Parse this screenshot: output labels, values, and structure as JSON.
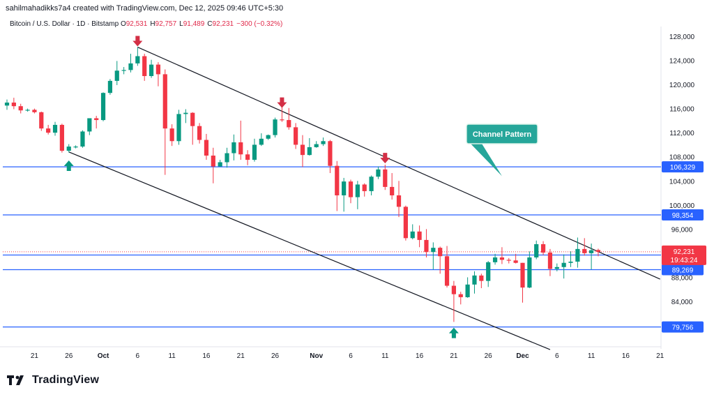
{
  "header": {
    "credit": "sahilmahadikks7a4 created with TradingView.com, Dec 12, 2025 09:46 UTC+5:30"
  },
  "symbol": {
    "name": "Bitcoin / U.S. Dollar · 1D · Bitstamp",
    "ohlc": [
      {
        "k": "O",
        "v": "92,531"
      },
      {
        "k": "H",
        "v": "92,757"
      },
      {
        "k": "L",
        "v": "91,489"
      },
      {
        "k": "C",
        "v": "92,231"
      },
      {
        "k": "",
        "v": "−300 (−0.32%)"
      }
    ]
  },
  "brand": {
    "name": "TradingView"
  },
  "colors": {
    "up": "#089981",
    "down": "#f23645",
    "level": "#2962ff",
    "callout": "#26a69a",
    "arrow_down": "#d32f45"
  },
  "chart_data": {
    "type": "candlestick",
    "y_ticks": [
      "84,000",
      "88,000",
      "92,000",
      "96,000",
      "100,000",
      "104,000",
      "108,000",
      "112,000",
      "116,000",
      "120,000",
      "124,000",
      "128,000"
    ],
    "ylim": [
      76000,
      130000
    ],
    "x_ticks": [
      {
        "label": "21",
        "date": "2025-09-21"
      },
      {
        "label": "26",
        "date": "2025-09-26"
      },
      {
        "label": "Oct",
        "date": "2025-10-01"
      },
      {
        "label": "6",
        "date": "2025-10-06"
      },
      {
        "label": "11",
        "date": "2025-10-11"
      },
      {
        "label": "16",
        "date": "2025-10-16"
      },
      {
        "label": "21",
        "date": "2025-10-21"
      },
      {
        "label": "26",
        "date": "2025-10-26"
      },
      {
        "label": "Nov",
        "date": "2025-11-01"
      },
      {
        "label": "6",
        "date": "2025-11-06"
      },
      {
        "label": "11",
        "date": "2025-11-11"
      },
      {
        "label": "16",
        "date": "2025-11-16"
      },
      {
        "label": "21",
        "date": "2025-11-21"
      },
      {
        "label": "26",
        "date": "2025-11-26"
      },
      {
        "label": "Dec",
        "date": "2025-12-01"
      },
      {
        "label": "6",
        "date": "2025-12-06"
      },
      {
        "label": "11",
        "date": "2025-12-11"
      },
      {
        "label": "16",
        "date": "2025-12-16"
      },
      {
        "label": "21",
        "date": "2025-12-21"
      }
    ],
    "horizontal_levels": [
      {
        "value": 106329,
        "label": "106,329"
      },
      {
        "value": 98354,
        "label": "98,354"
      },
      {
        "value": 91702,
        "label": "91,702"
      },
      {
        "value": 89269,
        "label": "89,269"
      },
      {
        "value": 79756,
        "label": "79,756"
      }
    ],
    "last_price": {
      "value": 92231,
      "label": "92,231",
      "countdown": "19:43:24"
    },
    "channel_lines": [
      {
        "from": {
          "date": "2025-10-06",
          "price": 126200
        },
        "to": {
          "date": "2025-12-21",
          "price": 87700
        }
      },
      {
        "from": {
          "date": "2025-09-26",
          "price": 108800
        },
        "to": {
          "date": "2025-12-05",
          "price": 76000
        }
      }
    ],
    "annotation": {
      "text": "Channel Pattern",
      "points_to": {
        "date": "2025-11-28",
        "price": 104800
      }
    },
    "markers": [
      {
        "type": "down",
        "date": "2025-10-06",
        "price": 126200
      },
      {
        "type": "down",
        "date": "2025-10-27",
        "price": 116000
      },
      {
        "type": "down",
        "date": "2025-11-11",
        "price": 106800
      },
      {
        "type": "up",
        "date": "2025-09-26",
        "price": 107500
      },
      {
        "type": "up",
        "date": "2025-11-21",
        "price": 79756
      }
    ],
    "candles": [
      {
        "date": "2025-09-17",
        "o": 116500,
        "h": 117500,
        "l": 115800,
        "c": 117000
      },
      {
        "date": "2025-09-18",
        "o": 117000,
        "h": 117800,
        "l": 115900,
        "c": 116400
      },
      {
        "date": "2025-09-19",
        "o": 116400,
        "h": 116800,
        "l": 115200,
        "c": 115700
      },
      {
        "date": "2025-09-20",
        "o": 115700,
        "h": 116000,
        "l": 115500,
        "c": 115800
      },
      {
        "date": "2025-09-21",
        "o": 115800,
        "h": 116000,
        "l": 115200,
        "c": 115400
      },
      {
        "date": "2025-09-22",
        "o": 115400,
        "h": 115500,
        "l": 112300,
        "c": 112700
      },
      {
        "date": "2025-09-23",
        "o": 112700,
        "h": 113300,
        "l": 111700,
        "c": 112000
      },
      {
        "date": "2025-09-24",
        "o": 112000,
        "h": 113800,
        "l": 111500,
        "c": 113300
      },
      {
        "date": "2025-09-25",
        "o": 113300,
        "h": 113500,
        "l": 108700,
        "c": 109000
      },
      {
        "date": "2025-09-26",
        "o": 109000,
        "h": 110100,
        "l": 108700,
        "c": 109700
      },
      {
        "date": "2025-09-27",
        "o": 109700,
        "h": 109900,
        "l": 109400,
        "c": 109700
      },
      {
        "date": "2025-09-28",
        "o": 109700,
        "h": 112400,
        "l": 109500,
        "c": 112200
      },
      {
        "date": "2025-09-29",
        "o": 112200,
        "h": 114300,
        "l": 111600,
        "c": 114400
      },
      {
        "date": "2025-09-30",
        "o": 114400,
        "h": 114800,
        "l": 112700,
        "c": 114100
      },
      {
        "date": "2025-10-01",
        "o": 114100,
        "h": 118700,
        "l": 113900,
        "c": 118600
      },
      {
        "date": "2025-10-02",
        "o": 118600,
        "h": 120900,
        "l": 118300,
        "c": 120600
      },
      {
        "date": "2025-10-03",
        "o": 120600,
        "h": 123900,
        "l": 119900,
        "c": 122300
      },
      {
        "date": "2025-10-04",
        "o": 122300,
        "h": 122900,
        "l": 121700,
        "c": 122400
      },
      {
        "date": "2025-10-05",
        "o": 122400,
        "h": 125100,
        "l": 122000,
        "c": 123500
      },
      {
        "date": "2025-10-06",
        "o": 123500,
        "h": 126200,
        "l": 123100,
        "c": 124700
      },
      {
        "date": "2025-10-07",
        "o": 124700,
        "h": 125100,
        "l": 120600,
        "c": 121400
      },
      {
        "date": "2025-10-08",
        "o": 121400,
        "h": 124100,
        "l": 121100,
        "c": 123300
      },
      {
        "date": "2025-10-09",
        "o": 123300,
        "h": 123700,
        "l": 119700,
        "c": 121700
      },
      {
        "date": "2025-10-10",
        "o": 121700,
        "h": 122500,
        "l": 105000,
        "c": 112700
      },
      {
        "date": "2025-10-11",
        "o": 112700,
        "h": 113400,
        "l": 109800,
        "c": 110600
      },
      {
        "date": "2025-10-12",
        "o": 110600,
        "h": 115800,
        "l": 110000,
        "c": 115100
      },
      {
        "date": "2025-10-13",
        "o": 115100,
        "h": 115900,
        "l": 113600,
        "c": 115300
      },
      {
        "date": "2025-10-14",
        "o": 115300,
        "h": 115400,
        "l": 110000,
        "c": 113100
      },
      {
        "date": "2025-10-15",
        "o": 113100,
        "h": 113600,
        "l": 110200,
        "c": 110800
      },
      {
        "date": "2025-10-16",
        "o": 110800,
        "h": 111800,
        "l": 107500,
        "c": 108200
      },
      {
        "date": "2025-10-17",
        "o": 108200,
        "h": 109500,
        "l": 103600,
        "c": 106400
      },
      {
        "date": "2025-10-18",
        "o": 106400,
        "h": 107500,
        "l": 106300,
        "c": 107100
      },
      {
        "date": "2025-10-19",
        "o": 107100,
        "h": 109500,
        "l": 106200,
        "c": 108600
      },
      {
        "date": "2025-10-20",
        "o": 108600,
        "h": 111700,
        "l": 107400,
        "c": 110400
      },
      {
        "date": "2025-10-21",
        "o": 110400,
        "h": 114000,
        "l": 107500,
        "c": 108400
      },
      {
        "date": "2025-10-22",
        "o": 108400,
        "h": 109100,
        "l": 106600,
        "c": 107500
      },
      {
        "date": "2025-10-23",
        "o": 107500,
        "h": 111000,
        "l": 107200,
        "c": 110000
      },
      {
        "date": "2025-10-24",
        "o": 110000,
        "h": 111900,
        "l": 109800,
        "c": 111000
      },
      {
        "date": "2025-10-25",
        "o": 111000,
        "h": 111700,
        "l": 110800,
        "c": 111600
      },
      {
        "date": "2025-10-26",
        "o": 111600,
        "h": 114500,
        "l": 111200,
        "c": 114200
      },
      {
        "date": "2025-10-27",
        "o": 114200,
        "h": 116300,
        "l": 113800,
        "c": 114100
      },
      {
        "date": "2025-10-28",
        "o": 114100,
        "h": 116100,
        "l": 112500,
        "c": 112900
      },
      {
        "date": "2025-10-29",
        "o": 112900,
        "h": 113600,
        "l": 109300,
        "c": 110000
      },
      {
        "date": "2025-10-30",
        "o": 110000,
        "h": 111600,
        "l": 106300,
        "c": 108300
      },
      {
        "date": "2025-10-31",
        "o": 108300,
        "h": 111100,
        "l": 108200,
        "c": 109600
      },
      {
        "date": "2025-11-01",
        "o": 109600,
        "h": 110600,
        "l": 109500,
        "c": 110100
      },
      {
        "date": "2025-11-02",
        "o": 110100,
        "h": 111200,
        "l": 109800,
        "c": 110600
      },
      {
        "date": "2025-11-03",
        "o": 110600,
        "h": 110800,
        "l": 105300,
        "c": 106500
      },
      {
        "date": "2025-11-04",
        "o": 106500,
        "h": 107300,
        "l": 99000,
        "c": 101600
      },
      {
        "date": "2025-11-05",
        "o": 101600,
        "h": 104500,
        "l": 98900,
        "c": 103900
      },
      {
        "date": "2025-11-06",
        "o": 103900,
        "h": 104200,
        "l": 100300,
        "c": 101300
      },
      {
        "date": "2025-11-07",
        "o": 101300,
        "h": 104000,
        "l": 99300,
        "c": 103400
      },
      {
        "date": "2025-11-08",
        "o": 103400,
        "h": 103600,
        "l": 101400,
        "c": 102300
      },
      {
        "date": "2025-11-09",
        "o": 102300,
        "h": 104900,
        "l": 101600,
        "c": 104700
      },
      {
        "date": "2025-11-10",
        "o": 104700,
        "h": 106400,
        "l": 104300,
        "c": 105900
      },
      {
        "date": "2025-11-11",
        "o": 105900,
        "h": 106700,
        "l": 102500,
        "c": 103000
      },
      {
        "date": "2025-11-12",
        "o": 103000,
        "h": 105300,
        "l": 100900,
        "c": 101600
      },
      {
        "date": "2025-11-13",
        "o": 101600,
        "h": 104000,
        "l": 98000,
        "c": 99700
      },
      {
        "date": "2025-11-14",
        "o": 99700,
        "h": 99900,
        "l": 94100,
        "c": 94500
      },
      {
        "date": "2025-11-15",
        "o": 94500,
        "h": 96800,
        "l": 94300,
        "c": 95600
      },
      {
        "date": "2025-11-16",
        "o": 95600,
        "h": 96600,
        "l": 93000,
        "c": 94200
      },
      {
        "date": "2025-11-17",
        "o": 94200,
        "h": 96000,
        "l": 91300,
        "c": 92200
      },
      {
        "date": "2025-11-18",
        "o": 92200,
        "h": 93800,
        "l": 89300,
        "c": 92900
      },
      {
        "date": "2025-11-19",
        "o": 92900,
        "h": 93100,
        "l": 88600,
        "c": 91500
      },
      {
        "date": "2025-11-20",
        "o": 91500,
        "h": 93200,
        "l": 86300,
        "c": 86600
      },
      {
        "date": "2025-11-21",
        "o": 86600,
        "h": 87400,
        "l": 80600,
        "c": 85200
      },
      {
        "date": "2025-11-22",
        "o": 85200,
        "h": 85600,
        "l": 83500,
        "c": 84700
      },
      {
        "date": "2025-11-23",
        "o": 84700,
        "h": 88000,
        "l": 84600,
        "c": 86800
      },
      {
        "date": "2025-11-24",
        "o": 86800,
        "h": 89000,
        "l": 85300,
        "c": 88300
      },
      {
        "date": "2025-11-25",
        "o": 88300,
        "h": 88600,
        "l": 86200,
        "c": 87400
      },
      {
        "date": "2025-11-26",
        "o": 87400,
        "h": 90700,
        "l": 86400,
        "c": 90500
      },
      {
        "date": "2025-11-27",
        "o": 90500,
        "h": 91900,
        "l": 90100,
        "c": 91300
      },
      {
        "date": "2025-11-28",
        "o": 91300,
        "h": 93000,
        "l": 90200,
        "c": 90900
      },
      {
        "date": "2025-11-29",
        "o": 90900,
        "h": 91200,
        "l": 90300,
        "c": 90800
      },
      {
        "date": "2025-11-30",
        "o": 90800,
        "h": 91900,
        "l": 90300,
        "c": 90400
      },
      {
        "date": "2025-12-01",
        "o": 90400,
        "h": 90400,
        "l": 83800,
        "c": 86300
      },
      {
        "date": "2025-12-02",
        "o": 86300,
        "h": 92300,
        "l": 86200,
        "c": 91300
      },
      {
        "date": "2025-12-03",
        "o": 91300,
        "h": 94100,
        "l": 91000,
        "c": 93500
      },
      {
        "date": "2025-12-04",
        "o": 93500,
        "h": 94000,
        "l": 91700,
        "c": 92100
      },
      {
        "date": "2025-12-05",
        "o": 92100,
        "h": 92700,
        "l": 88200,
        "c": 89400
      },
      {
        "date": "2025-12-06",
        "o": 89400,
        "h": 90300,
        "l": 89000,
        "c": 89700
      },
      {
        "date": "2025-12-07",
        "o": 89700,
        "h": 91800,
        "l": 87800,
        "c": 90400
      },
      {
        "date": "2025-12-08",
        "o": 90400,
        "h": 92300,
        "l": 89700,
        "c": 90600
      },
      {
        "date": "2025-12-09",
        "o": 90600,
        "h": 94600,
        "l": 89600,
        "c": 92700
      },
      {
        "date": "2025-12-10",
        "o": 92700,
        "h": 94500,
        "l": 91600,
        "c": 92000
      },
      {
        "date": "2025-12-11",
        "o": 92000,
        "h": 93600,
        "l": 89300,
        "c": 92500
      },
      {
        "date": "2025-12-12",
        "o": 92531,
        "h": 92757,
        "l": 91489,
        "c": 92231
      }
    ]
  }
}
